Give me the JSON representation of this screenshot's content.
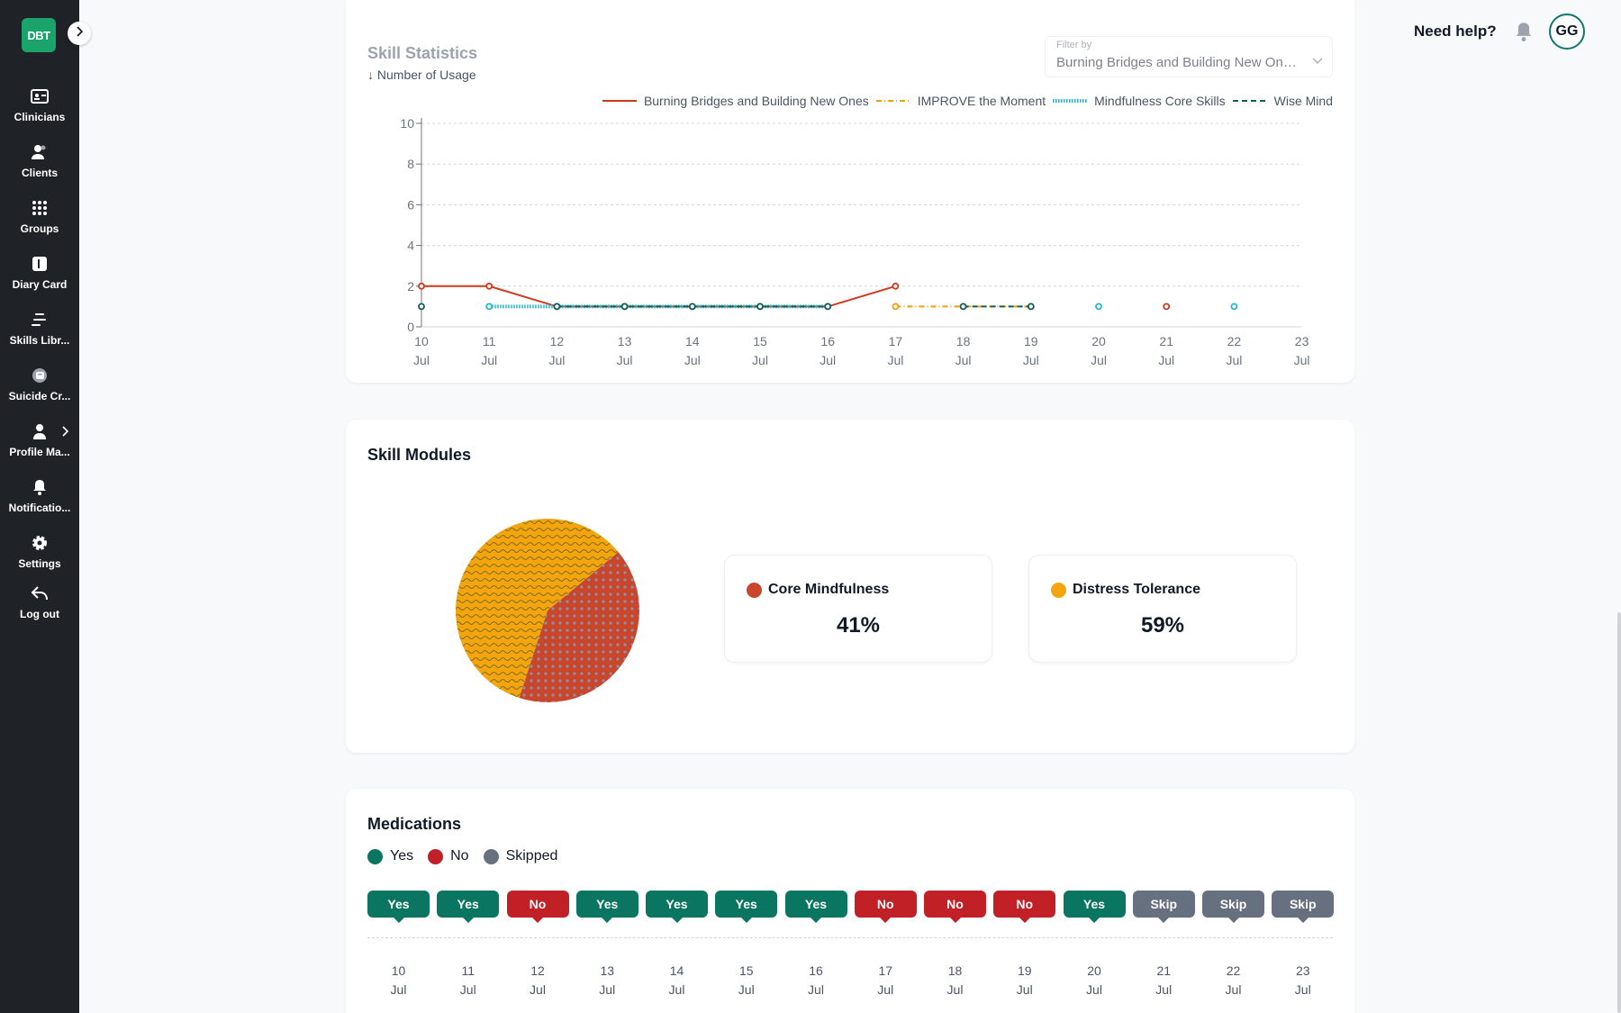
{
  "app": {
    "logo_text": "DBT"
  },
  "sidebar": {
    "items": [
      {
        "label": "Clinicians",
        "icon": "id-card-icon"
      },
      {
        "label": "Clients",
        "icon": "users-icon"
      },
      {
        "label": "Groups",
        "icon": "grid-icon"
      },
      {
        "label": "Diary Card",
        "icon": "book-icon"
      },
      {
        "label": "Skills Libr...",
        "icon": "list-icon"
      },
      {
        "label": "Suicide Cr...",
        "icon": "crisis-icon"
      },
      {
        "label": "Profile Ma...",
        "icon": "person-icon"
      },
      {
        "label": "Notificatio...",
        "icon": "bell-icon"
      },
      {
        "label": "Settings",
        "icon": "gear-icon"
      },
      {
        "label": "Log out",
        "icon": "logout-icon"
      }
    ]
  },
  "header": {
    "help": "Need help?",
    "avatar_initials": "GG"
  },
  "skill_statistics": {
    "title": "Skill Statistics",
    "subtitle": "↓ Number of Usage",
    "filter": {
      "label": "Filter by",
      "value": "Burning Bridges and Building New Ones, IMPROVE the Moment"
    }
  },
  "chart_data": {
    "type": "line",
    "x": [
      "10 Jul",
      "11 Jul",
      "12 Jul",
      "13 Jul",
      "14 Jul",
      "15 Jul",
      "16 Jul",
      "17 Jul",
      "18 Jul",
      "19 Jul",
      "20 Jul",
      "21 Jul",
      "22 Jul",
      "23 Jul"
    ],
    "x_ticks": [
      [
        "10",
        "Jul"
      ],
      [
        "11",
        "Jul"
      ],
      [
        "12",
        "Jul"
      ],
      [
        "13",
        "Jul"
      ],
      [
        "14",
        "Jul"
      ],
      [
        "15",
        "Jul"
      ],
      [
        "16",
        "Jul"
      ],
      [
        "17",
        "Jul"
      ],
      [
        "18",
        "Jul"
      ],
      [
        "19",
        "Jul"
      ],
      [
        "20",
        "Jul"
      ],
      [
        "21",
        "Jul"
      ],
      [
        "22",
        "Jul"
      ],
      [
        "23",
        "Jul"
      ]
    ],
    "ylim": [
      0,
      10
    ],
    "yticks": [
      0,
      2,
      4,
      6,
      8,
      10
    ],
    "grid": true,
    "legend_position": "top-right",
    "series": [
      {
        "name": "Burning Bridges and Building New Ones",
        "color": "#d0391b",
        "style": "solid",
        "values": [
          2,
          2,
          1,
          1,
          1,
          1,
          1,
          2,
          null,
          null,
          null,
          1,
          null,
          null
        ]
      },
      {
        "name": "IMPROVE the Moment",
        "color": "#f59e0b",
        "style": "dashdot",
        "values": [
          null,
          null,
          null,
          null,
          null,
          null,
          null,
          1,
          1,
          1,
          null,
          null,
          null,
          null
        ]
      },
      {
        "name": "Mindfulness Core Skills",
        "color": "#22b8cf",
        "style": "dotted",
        "values": [
          null,
          1,
          1,
          1,
          1,
          1,
          1,
          null,
          null,
          null,
          1,
          null,
          1,
          null
        ]
      },
      {
        "name": "Wise Mind",
        "color": "#0f5f57",
        "style": "dashed",
        "values": [
          1,
          null,
          1,
          1,
          1,
          1,
          1,
          null,
          1,
          1,
          null,
          null,
          null,
          null
        ]
      }
    ]
  },
  "skill_modules": {
    "title": "Skill Modules",
    "items": [
      {
        "name": "Core Mindfulness",
        "percent_label": "41%",
        "value": 41,
        "color": "#c9452c"
      },
      {
        "name": "Distress Tolerance",
        "percent_label": "59%",
        "value": 59,
        "color": "#f2a50c"
      }
    ]
  },
  "medications": {
    "title": "Medications",
    "legend": [
      {
        "label": "Yes",
        "color": "#0a7560"
      },
      {
        "label": "No",
        "color": "#c02026"
      },
      {
        "label": "Skipped",
        "color": "#66707e"
      }
    ],
    "days": [
      {
        "status": "Yes",
        "day": "10",
        "month": "Jul"
      },
      {
        "status": "Yes",
        "day": "11",
        "month": "Jul"
      },
      {
        "status": "No",
        "day": "12",
        "month": "Jul"
      },
      {
        "status": "Yes",
        "day": "13",
        "month": "Jul"
      },
      {
        "status": "Yes",
        "day": "14",
        "month": "Jul"
      },
      {
        "status": "Yes",
        "day": "15",
        "month": "Jul"
      },
      {
        "status": "Yes",
        "day": "16",
        "month": "Jul"
      },
      {
        "status": "No",
        "day": "17",
        "month": "Jul"
      },
      {
        "status": "No",
        "day": "18",
        "month": "Jul"
      },
      {
        "status": "No",
        "day": "19",
        "month": "Jul"
      },
      {
        "status": "Yes",
        "day": "20",
        "month": "Jul"
      },
      {
        "status": "Skip",
        "day": "21",
        "month": "Jul"
      },
      {
        "status": "Skip",
        "day": "22",
        "month": "Jul"
      },
      {
        "status": "Skip",
        "day": "23",
        "month": "Jul"
      }
    ]
  }
}
